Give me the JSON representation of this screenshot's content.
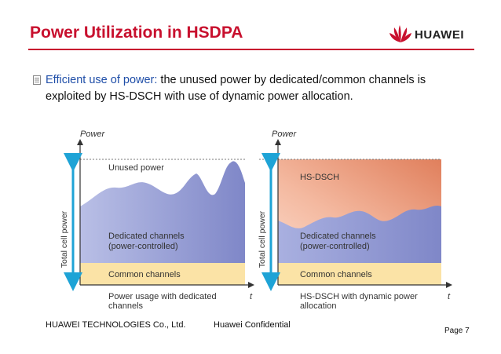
{
  "header": {
    "title": "Power Utilization in HSDPA",
    "brand": "HUAWEI",
    "brand_color": "#c8102e"
  },
  "bullet": {
    "lead": "Efficient use of power:",
    "text": " the unused power by dedicated/common channels is exploited by HS-DSCH with use of dynamic power allocation.",
    "icon": "list-bullet-icon"
  },
  "diagram": {
    "left_panel": {
      "axis_y": "Power",
      "axis_x": "t",
      "vertical_label": "Total cell power",
      "unused": "Unused power",
      "dedicated": "Dedicated channels\n(power-controlled)",
      "common": "Common channels",
      "caption": "Power usage with dedicated channels"
    },
    "right_panel": {
      "axis_y": "Power",
      "axis_x": "t",
      "vertical_label": "Total cell power",
      "hsdsch": "HS-DSCH",
      "dedicated": "Dedicated channels\n(power-controlled)",
      "common": "Common channels",
      "caption": "HS-DSCH with dynamic power allocation"
    },
    "colors": {
      "dedicated": "#8f97d2",
      "common": "#fbe3a6",
      "hsdsch_top": "#f8cbb5",
      "hsdsch_mid": "#e58b6a",
      "arrow": "#1ea3d6"
    }
  },
  "footer": {
    "company": "HUAWEI TECHNOLOGIES Co., Ltd.",
    "confidential": "Huawei Confidential",
    "page": "Page 7"
  }
}
